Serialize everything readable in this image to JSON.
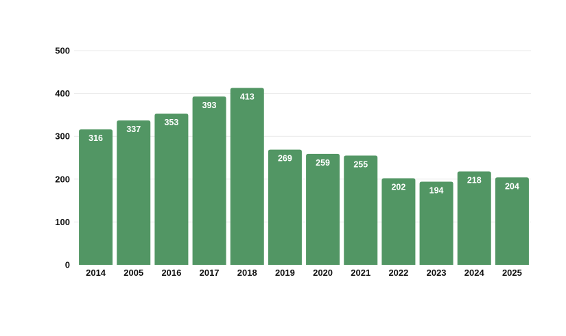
{
  "chart_data": {
    "type": "bar",
    "categories": [
      "2014",
      "2005",
      "2016",
      "2017",
      "2018",
      "2019",
      "2020",
      "2021",
      "2022",
      "2023",
      "2024",
      "2025"
    ],
    "values": [
      316,
      337,
      353,
      393,
      413,
      269,
      259,
      255,
      202,
      194,
      218,
      204
    ],
    "data_labels": [
      "316",
      "337",
      "353",
      "393",
      "413",
      "269",
      "259",
      "255",
      "202",
      "194",
      "218",
      "204"
    ],
    "title": "",
    "xlabel": "",
    "ylabel": "",
    "ylim": [
      0,
      500
    ],
    "yticks": [
      "0",
      "100",
      "200",
      "300",
      "400",
      "500"
    ],
    "grid": true,
    "legend": "none",
    "colors": {
      "bar": "#529664",
      "data_label": "#ffffff",
      "tick_label": "#111111",
      "grid": "#e9e9e9"
    }
  }
}
